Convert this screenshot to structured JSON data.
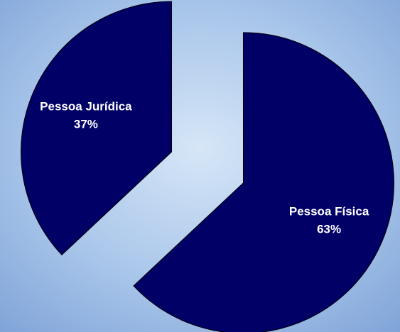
{
  "chart_data": {
    "type": "pie",
    "categories": [
      "Pessoa Física",
      "Pessoa Jurídica"
    ],
    "values": [
      63,
      37
    ],
    "value_labels": [
      "63%",
      "37%"
    ],
    "colors": [
      "#000066",
      "#000066"
    ]
  }
}
